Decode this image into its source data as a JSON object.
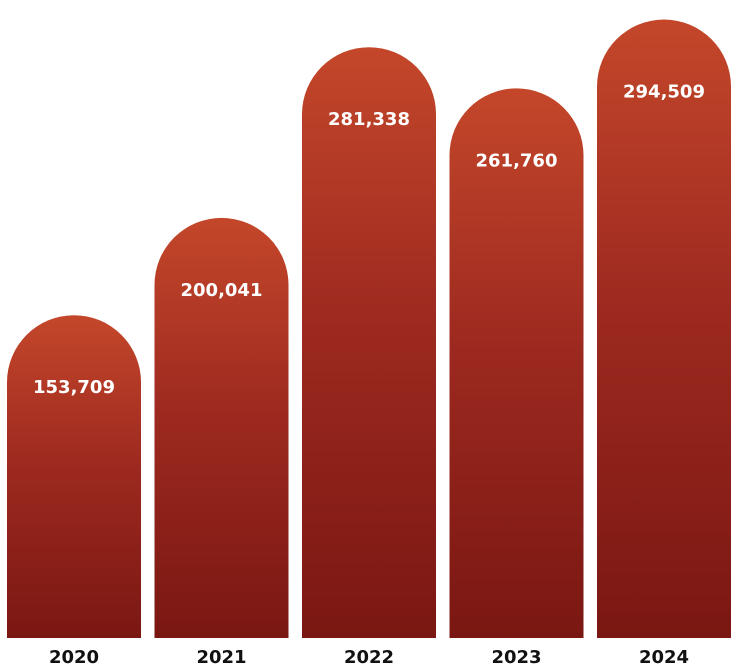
{
  "chart_data": {
    "type": "bar",
    "categories": [
      "2020",
      "2021",
      "2022",
      "2023",
      "2024"
    ],
    "values": [
      153709,
      200041,
      281338,
      261760,
      294509
    ],
    "data_labels": [
      "153,709",
      "200,041",
      "281,338",
      "261,760",
      "294,509"
    ],
    "title": "",
    "xlabel": "",
    "ylabel": "",
    "ylim": [
      0,
      300000
    ],
    "grid": false,
    "legend": "none",
    "bar_shape": "rounded-top-arch",
    "colors": {
      "bar_top": "#c4472a",
      "bar_mid": "#9e2a20",
      "bar_bottom": "#7a1712",
      "label_text": "#ffffff",
      "tick_text": "#111111",
      "background": "#ffffff"
    }
  }
}
